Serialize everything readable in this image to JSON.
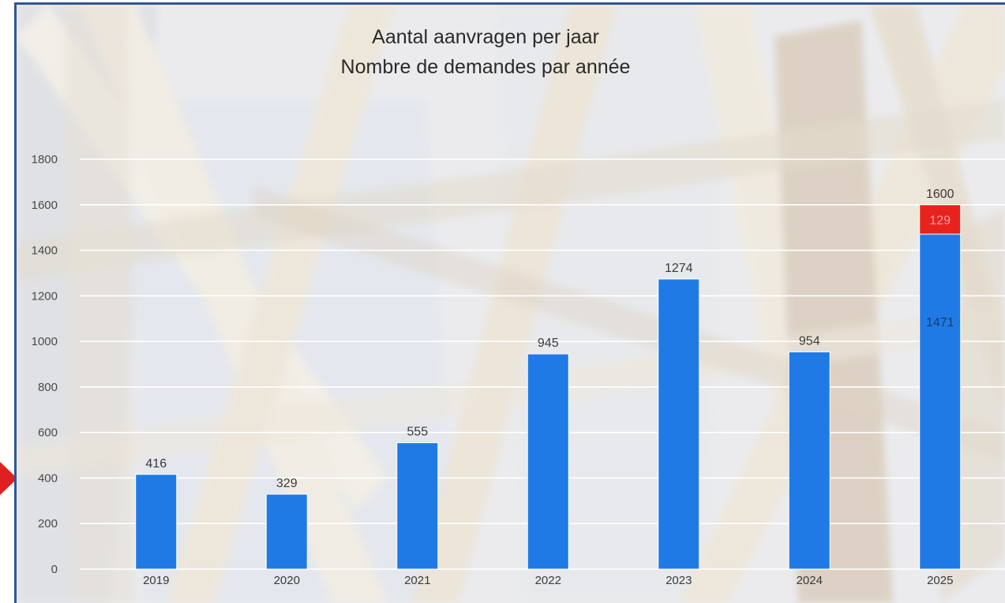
{
  "chart_data": {
    "type": "bar",
    "title_lines": [
      "Aantal aanvragen per jaar",
      "Nombre de demandes par année"
    ],
    "categories": [
      "2019",
      "2020",
      "2021",
      "2022",
      "2023",
      "2024",
      "2025"
    ],
    "series": [
      {
        "values": [
          416,
          329,
          555,
          945,
          1274,
          954,
          1471
        ],
        "color": "#1f7ae6"
      },
      {
        "values": [
          0,
          0,
          0,
          0,
          0,
          0,
          129
        ],
        "color": "#e8221c"
      }
    ],
    "labels": [
      "416",
      "329",
      "555",
      "945",
      "1274",
      "954",
      "1600"
    ],
    "segment_labels": [
      "1471",
      "129"
    ],
    "yticks": [
      "0",
      "200",
      "400",
      "600",
      "800",
      "1000",
      "1200",
      "1400",
      "1600",
      "1800"
    ],
    "ylim": [
      0,
      1800
    ],
    "grid": true,
    "legend": "none"
  },
  "colors": {
    "border": "#2f5597",
    "arrow": "#e02020",
    "grid": "#ffffff"
  }
}
